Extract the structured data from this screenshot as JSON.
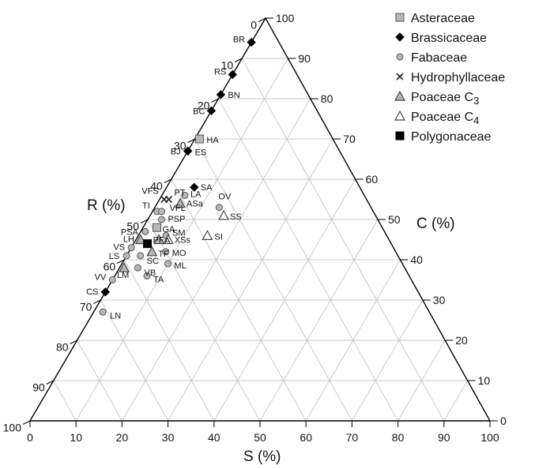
{
  "chart_data": {
    "type": "scatter",
    "subtype": "ternary",
    "axes": {
      "C": {
        "label": "C (%)",
        "ticks": [
          0,
          10,
          20,
          30,
          40,
          50,
          60,
          70,
          80,
          90,
          100
        ]
      },
      "R": {
        "label": "R (%)",
        "ticks": [
          0,
          10,
          20,
          30,
          40,
          50,
          60,
          70,
          80,
          90,
          100
        ]
      },
      "S": {
        "label": "S (%)",
        "ticks": [
          0,
          10,
          20,
          30,
          40,
          50,
          60,
          70,
          80,
          90,
          100
        ]
      }
    },
    "grid": true,
    "legend_position": "top-right",
    "series": [
      {
        "name": "Asteraceae",
        "marker": "square",
        "fill": "#b8b8b8",
        "stroke": "#555555"
      },
      {
        "name": "Brassicaceae",
        "marker": "diamond",
        "fill": "#000000",
        "stroke": "#000000"
      },
      {
        "name": "Fabaceae",
        "marker": "circle",
        "fill": "#b8b8b8",
        "stroke": "#555555"
      },
      {
        "name": "Hydrophyllaceae",
        "marker": "cross",
        "fill": "none",
        "stroke": "#222222"
      },
      {
        "name": "Poaceae C3",
        "legend_main": "Poaceae C",
        "legend_sub": "3",
        "marker": "triangle",
        "fill": "#b8b8b8",
        "stroke": "#444444"
      },
      {
        "name": "Poaceae C4",
        "legend_main": "Poaceae C",
        "legend_sub": "4",
        "marker": "triangle",
        "fill": "#ffffff",
        "stroke": "#444444"
      },
      {
        "name": "Polygonaceae",
        "marker": "square",
        "fill": "#000000",
        "stroke": "#000000"
      }
    ],
    "points": [
      {
        "label": "BR",
        "series": "Brassicaceae",
        "C": 94,
        "S": 0,
        "R": 6
      },
      {
        "label": "RS",
        "series": "Brassicaceae",
        "C": 86,
        "S": 0,
        "R": 14
      },
      {
        "label": "BN",
        "series": "Brassicaceae",
        "C": 81,
        "S": 0,
        "R": 19
      },
      {
        "label": "BC",
        "series": "Brassicaceae",
        "C": 77,
        "S": 0,
        "R": 23
      },
      {
        "label": "HA",
        "series": "Asteraceae",
        "C": 70,
        "S": 1,
        "R": 29
      },
      {
        "label": "BJ",
        "series": "Brassicaceae",
        "C": 67,
        "S": 0,
        "R": 33
      },
      {
        "label": "ES",
        "series": "Brassicaceae",
        "C": 67,
        "S": 0,
        "R": 33
      },
      {
        "label": "SA",
        "series": "Brassicaceae",
        "C": 58,
        "S": 6,
        "R": 36
      },
      {
        "label": "VFS",
        "series": "Hydrophyllaceae",
        "C": 55,
        "S": 1,
        "R": 44
      },
      {
        "label": "PT",
        "series": "Hydrophyllaceae",
        "C": 55,
        "S": 2,
        "R": 43
      },
      {
        "label": "LA",
        "series": "Fabaceae",
        "C": 56,
        "S": 5,
        "R": 39
      },
      {
        "label": "OV",
        "series": "Fabaceae",
        "C": 53,
        "S": 14,
        "R": 33
      },
      {
        "label": "TI",
        "series": "Fabaceae",
        "C": 52,
        "S": 1,
        "R": 47
      },
      {
        "label": "VFL",
        "series": "Fabaceae",
        "C": 52,
        "S": 2,
        "R": 46
      },
      {
        "label": "ASa",
        "series": "Poaceae C3",
        "C": 54,
        "S": 5,
        "R": 41
      },
      {
        "label": "PSP",
        "series": "Fabaceae",
        "C": 50,
        "S": 3,
        "R": 47
      },
      {
        "label": "SS",
        "series": "Poaceae C4",
        "C": 51,
        "S": 16,
        "R": 33
      },
      {
        "label": "PSA",
        "series": "Fabaceae",
        "C": 47,
        "S": 1,
        "R": 52
      },
      {
        "label": "GA",
        "series": "Asteraceae",
        "C": 48,
        "S": 3,
        "R": 49
      },
      {
        "label": "SM",
        "series": "Fabaceae",
        "C": 46,
        "S": 6,
        "R": 48
      },
      {
        "label": "LH",
        "series": "Poaceae C3",
        "C": 45,
        "S": 1,
        "R": 54
      },
      {
        "label": "PF",
        "series": "Polygonaceae",
        "C": 44,
        "S": 3,
        "R": 53
      },
      {
        "label": "A",
        "series": "Poaceae C3",
        "C": 45,
        "S": 5,
        "R": 50
      },
      {
        "label": "XSs",
        "series": "Poaceae C4",
        "C": 45,
        "S": 7,
        "R": 48
      },
      {
        "label": "SI",
        "series": "Poaceae C4",
        "C": 46,
        "S": 15,
        "R": 39
      },
      {
        "label": "VS",
        "series": "Fabaceae",
        "C": 43,
        "S": 0,
        "R": 57
      },
      {
        "label": "MO",
        "series": "Fabaceae",
        "C": 42,
        "S": 8,
        "R": 50
      },
      {
        "label": "SC",
        "series": "Fabaceae",
        "C": 41,
        "S": 3,
        "R": 56
      },
      {
        "label": "TF",
        "series": "Poaceae C3",
        "C": 42,
        "S": 5,
        "R": 53
      },
      {
        "label": "LS",
        "series": "Fabaceae",
        "C": 41,
        "S": 0,
        "R": 59
      },
      {
        "label": "ML",
        "series": "Fabaceae",
        "C": 39,
        "S": 10,
        "R": 51
      },
      {
        "label": "LM",
        "series": "Poaceae C3",
        "C": 38,
        "S": 1,
        "R": 61
      },
      {
        "label": "VB",
        "series": "Fabaceae",
        "C": 38,
        "S": 4,
        "R": 58
      },
      {
        "label": "TA",
        "series": "Fabaceae",
        "C": 36,
        "S": 7,
        "R": 57
      },
      {
        "label": "VV",
        "series": "Fabaceae",
        "C": 35,
        "S": 0,
        "R": 65
      },
      {
        "label": "CS",
        "series": "Brassicaceae",
        "C": 32,
        "S": 0,
        "R": 68
      },
      {
        "label": "LN",
        "series": "Fabaceae",
        "C": 27,
        "S": 2,
        "R": 71
      }
    ]
  }
}
